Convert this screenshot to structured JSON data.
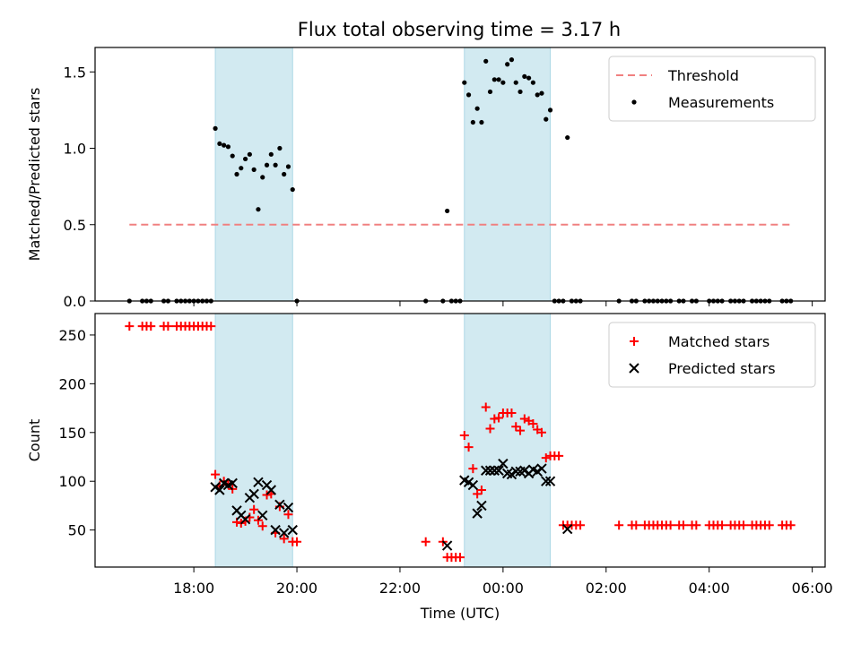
{
  "figure": {
    "title": "Flux total observing time = 3.17 h"
  },
  "chart_data": [
    {
      "type": "scatter",
      "ylabel": "Matched/Predicted stars",
      "ylim": [
        0,
        1.66
      ],
      "yticks": [
        0.0,
        0.5,
        1.0,
        1.5
      ],
      "ytick_labels": [
        "0.0",
        "0.5",
        "1.0",
        "1.5"
      ],
      "shaded_windows": [
        [
          "18:25",
          "19:55"
        ],
        [
          "23:15",
          "00:55"
        ]
      ],
      "shade_color": "#add8e6",
      "legend_position": "top-right",
      "threshold": {
        "name": "Threshold",
        "value": 0.5,
        "x_range": [
          "16:45",
          "05:35"
        ],
        "color": "#f08080",
        "style": "dashed"
      },
      "series": [
        {
          "name": "Measurements",
          "marker": "dot",
          "color": "#000000",
          "points": [
            [
              "16:45",
              0
            ],
            [
              "17:00",
              0
            ],
            [
              "17:05",
              0
            ],
            [
              "17:10",
              0
            ],
            [
              "17:25",
              0
            ],
            [
              "17:30",
              0
            ],
            [
              "17:40",
              0
            ],
            [
              "17:45",
              0
            ],
            [
              "17:50",
              0
            ],
            [
              "17:55",
              0
            ],
            [
              "18:00",
              0
            ],
            [
              "18:05",
              0
            ],
            [
              "18:10",
              0
            ],
            [
              "18:15",
              0
            ],
            [
              "18:20",
              0
            ],
            [
              "18:25",
              1.13
            ],
            [
              "18:30",
              1.03
            ],
            [
              "18:35",
              1.02
            ],
            [
              "18:40",
              1.01
            ],
            [
              "18:45",
              0.95
            ],
            [
              "18:50",
              0.83
            ],
            [
              "18:55",
              0.87
            ],
            [
              "19:00",
              0.93
            ],
            [
              "19:05",
              0.96
            ],
            [
              "19:10",
              0.86
            ],
            [
              "19:15",
              0.6
            ],
            [
              "19:20",
              0.81
            ],
            [
              "19:25",
              0.89
            ],
            [
              "19:30",
              0.96
            ],
            [
              "19:35",
              0.89
            ],
            [
              "19:40",
              1.0
            ],
            [
              "19:45",
              0.83
            ],
            [
              "19:50",
              0.88
            ],
            [
              "19:55",
              0.73
            ],
            [
              "20:00",
              0
            ],
            [
              "22:30",
              0
            ],
            [
              "22:50",
              0
            ],
            [
              "22:55",
              0.59
            ],
            [
              "23:00",
              0
            ],
            [
              "23:05",
              0
            ],
            [
              "23:10",
              0
            ],
            [
              "23:15",
              1.43
            ],
            [
              "23:20",
              1.35
            ],
            [
              "23:25",
              1.17
            ],
            [
              "23:30",
              1.26
            ],
            [
              "23:35",
              1.17
            ],
            [
              "23:40",
              1.57
            ],
            [
              "23:45",
              1.37
            ],
            [
              "23:50",
              1.45
            ],
            [
              "23:55",
              1.45
            ],
            [
              "00:00",
              1.43
            ],
            [
              "00:05",
              1.55
            ],
            [
              "00:10",
              1.58
            ],
            [
              "00:15",
              1.43
            ],
            [
              "00:20",
              1.37
            ],
            [
              "00:25",
              1.47
            ],
            [
              "00:30",
              1.46
            ],
            [
              "00:35",
              1.43
            ],
            [
              "00:40",
              1.35
            ],
            [
              "00:45",
              1.36
            ],
            [
              "00:50",
              1.19
            ],
            [
              "00:55",
              1.25
            ],
            [
              "01:00",
              0
            ],
            [
              "01:05",
              0
            ],
            [
              "01:10",
              0
            ],
            [
              "01:15",
              1.07
            ],
            [
              "01:20",
              0
            ],
            [
              "01:25",
              0
            ],
            [
              "01:30",
              0
            ],
            [
              "02:15",
              0
            ],
            [
              "02:30",
              0
            ],
            [
              "02:35",
              0
            ],
            [
              "02:45",
              0
            ],
            [
              "02:50",
              0
            ],
            [
              "02:55",
              0
            ],
            [
              "03:00",
              0
            ],
            [
              "03:05",
              0
            ],
            [
              "03:10",
              0
            ],
            [
              "03:15",
              0
            ],
            [
              "03:25",
              0
            ],
            [
              "03:30",
              0
            ],
            [
              "03:40",
              0
            ],
            [
              "03:45",
              0
            ],
            [
              "04:00",
              0
            ],
            [
              "04:05",
              0
            ],
            [
              "04:10",
              0
            ],
            [
              "04:15",
              0
            ],
            [
              "04:25",
              0
            ],
            [
              "04:30",
              0
            ],
            [
              "04:35",
              0
            ],
            [
              "04:40",
              0
            ],
            [
              "04:50",
              0
            ],
            [
              "04:55",
              0
            ],
            [
              "05:00",
              0
            ],
            [
              "05:05",
              0
            ],
            [
              "05:10",
              0
            ],
            [
              "05:25",
              0
            ],
            [
              "05:30",
              0
            ],
            [
              "05:35",
              0
            ]
          ]
        }
      ]
    },
    {
      "type": "scatter",
      "xlabel": "Time (UTC)",
      "ylabel": "Count",
      "ylim": [
        12,
        272
      ],
      "yticks": [
        50,
        100,
        150,
        200,
        250
      ],
      "ytick_labels": [
        "50",
        "100",
        "150",
        "200",
        "250"
      ],
      "xticks": [
        "18:00",
        "20:00",
        "22:00",
        "00:00",
        "02:00",
        "04:00",
        "06:00"
      ],
      "xtick_labels": [
        "18:00",
        "20:00",
        "22:00",
        "00:00",
        "02:00",
        "04:00",
        "06:00"
      ],
      "x_range": [
        "16:05",
        "06:15"
      ],
      "shaded_windows": [
        [
          "18:25",
          "19:55"
        ],
        [
          "23:15",
          "00:55"
        ]
      ],
      "shade_color": "#add8e6",
      "legend_position": "top-right",
      "series": [
        {
          "name": "Matched stars",
          "marker": "plus",
          "color": "#ff0000",
          "points": [
            [
              "16:45",
              259
            ],
            [
              "17:00",
              259
            ],
            [
              "17:05",
              259
            ],
            [
              "17:10",
              259
            ],
            [
              "17:25",
              259
            ],
            [
              "17:30",
              259
            ],
            [
              "17:40",
              259
            ],
            [
              "17:45",
              259
            ],
            [
              "17:50",
              259
            ],
            [
              "17:55",
              259
            ],
            [
              "18:00",
              259
            ],
            [
              "18:05",
              259
            ],
            [
              "18:10",
              259
            ],
            [
              "18:15",
              259
            ],
            [
              "18:20",
              259
            ],
            [
              "18:25",
              107
            ],
            [
              "18:30",
              95
            ],
            [
              "18:35",
              100
            ],
            [
              "18:40",
              97
            ],
            [
              "18:45",
              92
            ],
            [
              "18:50",
              58
            ],
            [
              "18:55",
              57
            ],
            [
              "19:00",
              59
            ],
            [
              "19:05",
              63
            ],
            [
              "19:10",
              71
            ],
            [
              "19:15",
              60
            ],
            [
              "19:20",
              54
            ],
            [
              "19:25",
              86
            ],
            [
              "19:30",
              87
            ],
            [
              "19:35",
              47
            ],
            [
              "19:40",
              74
            ],
            [
              "19:45",
              41
            ],
            [
              "19:50",
              66
            ],
            [
              "19:55",
              38
            ],
            [
              "20:00",
              38
            ],
            [
              "22:30",
              38
            ],
            [
              "22:50",
              38
            ],
            [
              "22:55",
              22
            ],
            [
              "23:00",
              22
            ],
            [
              "23:05",
              22
            ],
            [
              "23:10",
              22
            ],
            [
              "23:15",
              147
            ],
            [
              "23:20",
              135
            ],
            [
              "23:25",
              113
            ],
            [
              "23:30",
              87
            ],
            [
              "23:35",
              91
            ],
            [
              "23:40",
              176
            ],
            [
              "23:45",
              154
            ],
            [
              "23:50",
              164
            ],
            [
              "23:55",
              165
            ],
            [
              "00:00",
              170
            ],
            [
              "00:05",
              170
            ],
            [
              "00:10",
              170
            ],
            [
              "00:15",
              156
            ],
            [
              "00:20",
              152
            ],
            [
              "00:25",
              164
            ],
            [
              "00:30",
              162
            ],
            [
              "00:35",
              159
            ],
            [
              "00:40",
              153
            ],
            [
              "00:45",
              150
            ],
            [
              "00:50",
              124
            ],
            [
              "00:55",
              126
            ],
            [
              "01:00",
              126
            ],
            [
              "01:05",
              126
            ],
            [
              "01:10",
              55
            ],
            [
              "01:15",
              55
            ],
            [
              "01:20",
              55
            ],
            [
              "01:25",
              55
            ],
            [
              "01:30",
              55
            ],
            [
              "02:15",
              55
            ],
            [
              "02:30",
              55
            ],
            [
              "02:35",
              55
            ],
            [
              "02:45",
              55
            ],
            [
              "02:50",
              55
            ],
            [
              "02:55",
              55
            ],
            [
              "03:00",
              55
            ],
            [
              "03:05",
              55
            ],
            [
              "03:10",
              55
            ],
            [
              "03:15",
              55
            ],
            [
              "03:25",
              55
            ],
            [
              "03:30",
              55
            ],
            [
              "03:40",
              55
            ],
            [
              "03:45",
              55
            ],
            [
              "04:00",
              55
            ],
            [
              "04:05",
              55
            ],
            [
              "04:10",
              55
            ],
            [
              "04:15",
              55
            ],
            [
              "04:25",
              55
            ],
            [
              "04:30",
              55
            ],
            [
              "04:35",
              55
            ],
            [
              "04:40",
              55
            ],
            [
              "04:50",
              55
            ],
            [
              "04:55",
              55
            ],
            [
              "05:00",
              55
            ],
            [
              "05:05",
              55
            ],
            [
              "05:10",
              55
            ],
            [
              "05:25",
              55
            ],
            [
              "05:30",
              55
            ],
            [
              "05:35",
              55
            ]
          ]
        },
        {
          "name": "Predicted stars",
          "marker": "x",
          "color": "#000000",
          "points": [
            [
              "18:25",
              94
            ],
            [
              "18:30",
              91
            ],
            [
              "18:35",
              98
            ],
            [
              "18:40",
              96
            ],
            [
              "18:45",
              98
            ],
            [
              "18:50",
              70
            ],
            [
              "18:55",
              65
            ],
            [
              "19:00",
              61
            ],
            [
              "19:05",
              83
            ],
            [
              "19:10",
              87
            ],
            [
              "19:15",
              99
            ],
            [
              "19:20",
              65
            ],
            [
              "19:25",
              96
            ],
            [
              "19:30",
              91
            ],
            [
              "19:35",
              50
            ],
            [
              "19:40",
              76
            ],
            [
              "19:45",
              47
            ],
            [
              "19:50",
              73
            ],
            [
              "19:55",
              50
            ],
            [
              "22:55",
              34
            ],
            [
              "23:15",
              101
            ],
            [
              "23:20",
              99
            ],
            [
              "23:25",
              96
            ],
            [
              "23:30",
              67
            ],
            [
              "23:35",
              75
            ],
            [
              "23:40",
              111
            ],
            [
              "23:45",
              111
            ],
            [
              "23:50",
              111
            ],
            [
              "23:55",
              111
            ],
            [
              "00:00",
              118
            ],
            [
              "00:05",
              108
            ],
            [
              "00:10",
              107
            ],
            [
              "00:15",
              110
            ],
            [
              "00:20",
              110
            ],
            [
              "00:25",
              111
            ],
            [
              "00:30",
              108
            ],
            [
              "00:35",
              112
            ],
            [
              "00:40",
              110
            ],
            [
              "00:45",
              113
            ],
            [
              "00:50",
              100
            ],
            [
              "00:55",
              100
            ],
            [
              "01:15",
              51
            ]
          ]
        }
      ]
    }
  ]
}
